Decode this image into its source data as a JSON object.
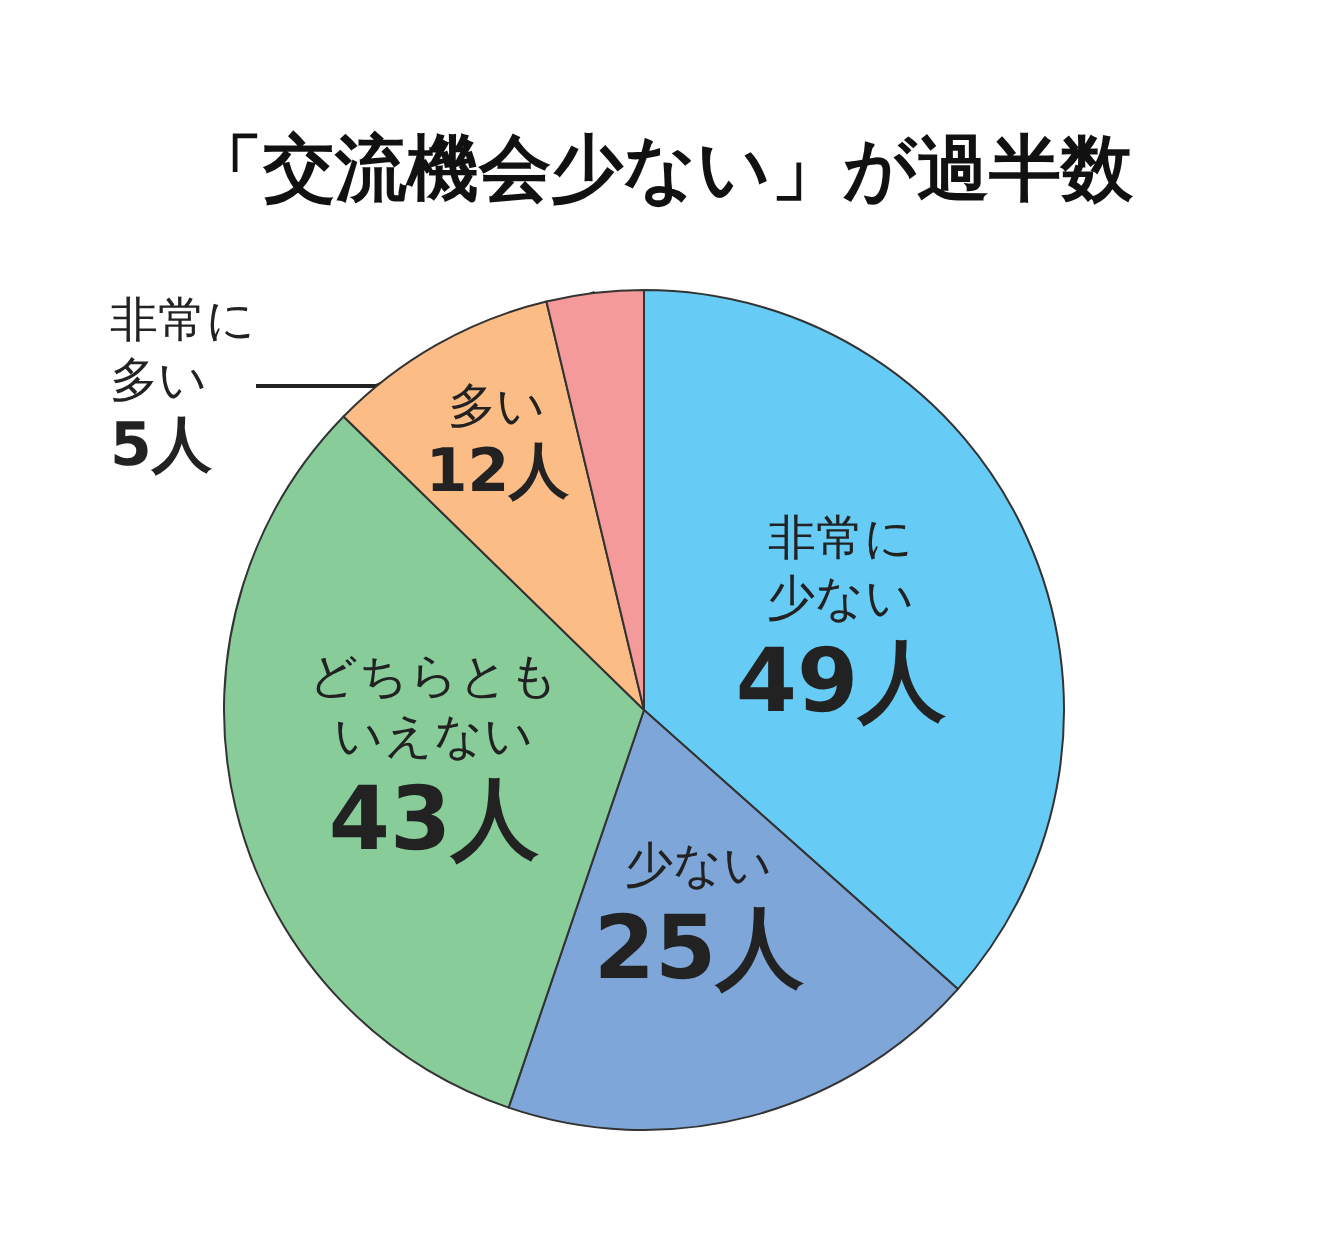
{
  "chart_data": {
    "type": "pie",
    "title": "「交流機会少ない」が過半数",
    "categories": [
      "非常に少ない",
      "少ない",
      "どちらともいえない",
      "多い",
      "非常に多い"
    ],
    "values": [
      49,
      25,
      43,
      12,
      5
    ],
    "value_labels": [
      "49人",
      "25人",
      "43人",
      "12人",
      "5人"
    ],
    "colors": [
      "#66ccf5",
      "#7fa6d8",
      "#88cc99",
      "#fbbd85",
      "#f59a9a"
    ]
  }
}
